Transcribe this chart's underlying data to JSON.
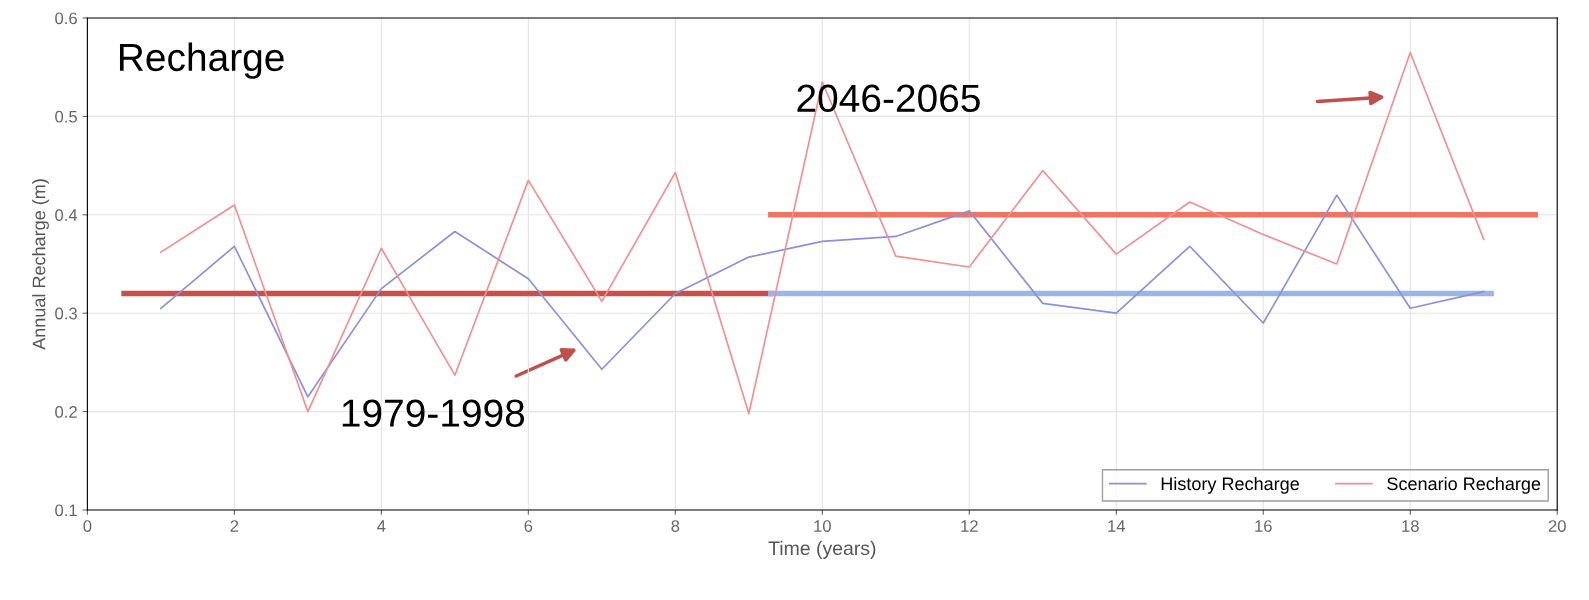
{
  "chart_data": {
    "type": "line",
    "title": "Recharge",
    "xlabel": "Time (years)",
    "ylabel": "Annual Recharge (m)",
    "x": [
      1,
      2,
      3,
      4,
      5,
      6,
      7,
      8,
      9,
      10,
      11,
      12,
      13,
      14,
      15,
      16,
      17,
      18,
      19
    ],
    "series": [
      {
        "name": "History Recharge",
        "color": "#8c90dc",
        "values": [
          0.305,
          0.368,
          0.215,
          0.325,
          0.383,
          0.335,
          0.243,
          0.32,
          0.357,
          0.373,
          0.378,
          0.404,
          0.31,
          0.3,
          0.368,
          0.29,
          0.42,
          0.305,
          0.322
        ]
      },
      {
        "name": "Scenario Recharge",
        "color": "#f29090",
        "values": [
          0.362,
          0.41,
          0.2,
          0.366,
          0.237,
          0.435,
          0.312,
          0.443,
          0.198,
          0.535,
          0.358,
          0.347,
          0.445,
          0.36,
          0.413,
          0.38,
          0.35,
          0.565,
          0.375
        ]
      },
      {
        "x": [
          0.5,
          9.3
        ],
        "color": "#c9504a",
        "values": [
          0.32,
          0.32
        ]
      },
      {
        "x": [
          9.3,
          19.1
        ],
        "color": "#9ab6e2",
        "values": [
          0.32,
          0.32
        ]
      },
      {
        "x": [
          9.3,
          19.7
        ],
        "color": "#f07462",
        "values": [
          0.4,
          0.4
        ]
      }
    ],
    "annotations": [
      "1979-1998",
      "2046-2065"
    ],
    "xlim": [
      0,
      20
    ],
    "xticks": [
      0,
      2,
      4,
      6,
      8,
      10,
      12,
      14,
      16,
      18,
      20
    ],
    "ylim": [
      0.1,
      0.6
    ],
    "yticks": [
      0.1,
      0.2,
      0.3,
      0.4,
      0.5,
      0.6
    ],
    "grid": true,
    "legend": "bottom right"
  }
}
